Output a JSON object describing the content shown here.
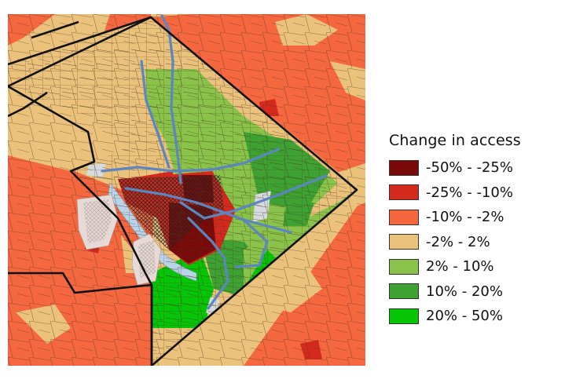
{
  "legend": {
    "title": "Change in access",
    "items": [
      {
        "label": "-50% - -25%",
        "color": "#7a0a0a"
      },
      {
        "label": "-25% - -10%",
        "color": "#d42a1e"
      },
      {
        "label": "-10% - -2%",
        "color": "#f4673f"
      },
      {
        "label": "-2% - 2%",
        "color": "#ebc27c"
      },
      {
        "label": "2% - 10%",
        "color": "#8ac34a"
      },
      {
        "label": "10% - 20%",
        "color": "#3ea232"
      },
      {
        "label": "20% - 50%",
        "color": "#06c506"
      }
    ]
  },
  "colors": {
    "boundary": "#111111",
    "tract_lines": "#3a2a1a",
    "transit_lines": "#5b86c0",
    "river": "#b9d3e8",
    "hatch": "#222222"
  }
}
